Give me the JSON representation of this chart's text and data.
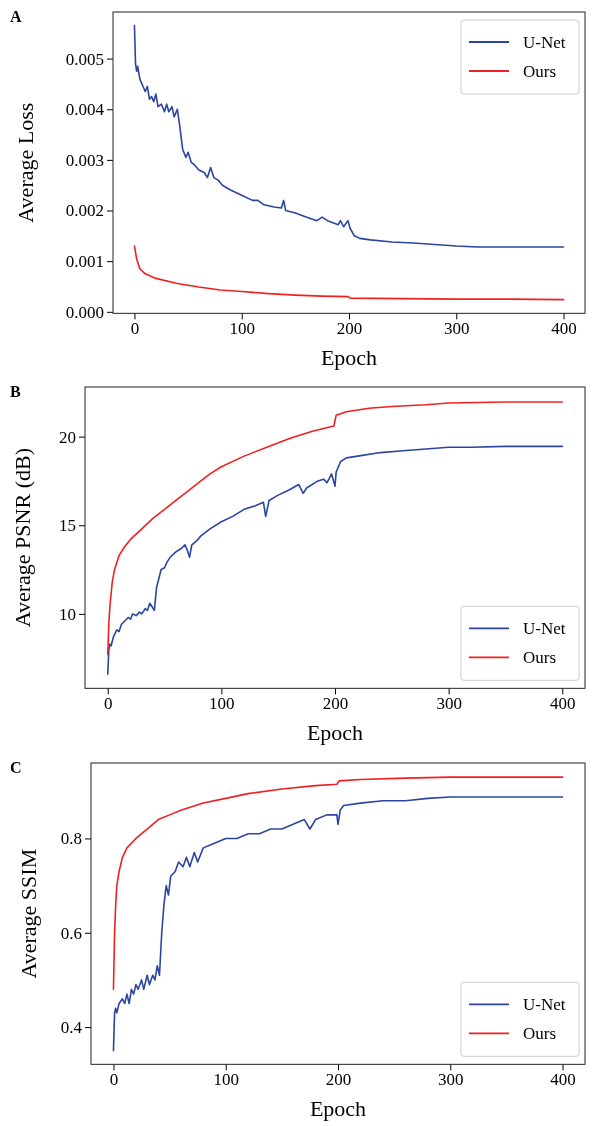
{
  "chart_data": [
    {
      "type": "line",
      "title": "A",
      "xlabel": "Epoch",
      "ylabel": "Average Loss",
      "xlim": [
        -20,
        420
      ],
      "xticks": [
        0,
        100,
        200,
        300,
        400
      ],
      "ylim": [
        -3e-05,
        0.00592
      ],
      "yticks": [
        {
          "value": 0,
          "label": "0.000"
        },
        0.001,
        0.002,
        0.003,
        0.004,
        0.005
      ],
      "legend": "top right",
      "series": [
        {
          "name": "U-Net",
          "color": "#2b45a0",
          "x": [
            0,
            1,
            2,
            3,
            5,
            8,
            10,
            12,
            14,
            16,
            18,
            20,
            22,
            25,
            28,
            30,
            32,
            35,
            37,
            40,
            42,
            45,
            48,
            50,
            53,
            56,
            60,
            65,
            68,
            71,
            74,
            78,
            82,
            90,
            100,
            110,
            115,
            120,
            130,
            137,
            139,
            141,
            150,
            160,
            170,
            175,
            180,
            190,
            192,
            195,
            199,
            201,
            205,
            210,
            220,
            240,
            260,
            280,
            300,
            320,
            350,
            380,
            400
          ],
          "values": [
            0.00565,
            0.0049,
            0.00475,
            0.00485,
            0.0046,
            0.00445,
            0.00435,
            0.00445,
            0.0042,
            0.00425,
            0.00415,
            0.0043,
            0.00405,
            0.0041,
            0.00395,
            0.0041,
            0.00395,
            0.00405,
            0.00385,
            0.004,
            0.0037,
            0.0032,
            0.00305,
            0.00315,
            0.00295,
            0.0029,
            0.0028,
            0.00275,
            0.00265,
            0.00285,
            0.00265,
            0.0026,
            0.0025,
            0.0024,
            0.0023,
            0.0022,
            0.0022,
            0.00212,
            0.00207,
            0.00205,
            0.0022,
            0.002,
            0.00195,
            0.00187,
            0.0018,
            0.00187,
            0.0018,
            0.00172,
            0.0018,
            0.00168,
            0.0018,
            0.00165,
            0.0015,
            0.00145,
            0.00142,
            0.00138,
            0.00136,
            0.00133,
            0.0013,
            0.00128,
            0.00128,
            0.00128,
            0.00128
          ]
        },
        {
          "name": "Ours",
          "color": "#f02020",
          "x": [
            0,
            2,
            5,
            10,
            20,
            40,
            60,
            80,
            100,
            125,
            150,
            175,
            199,
            201,
            250,
            300,
            350,
            400
          ],
          "values": [
            0.0013,
            0.00105,
            0.00085,
            0.00075,
            0.00066,
            0.00056,
            0.00049,
            0.00043,
            0.0004,
            0.00036,
            0.00033,
            0.00031,
            0.0003,
            0.00027,
            0.00026,
            0.00025,
            0.00025,
            0.00024
          ]
        }
      ]
    },
    {
      "type": "line",
      "title": "B",
      "xlabel": "Epoch",
      "ylabel": "Average PSNR (dB)",
      "xlim": [
        -20,
        420
      ],
      "xticks": [
        0,
        100,
        200,
        300,
        400
      ],
      "ylim": [
        5.8,
        22.8
      ],
      "yticks": [
        10,
        15,
        20
      ],
      "legend": "bottom right",
      "series": [
        {
          "name": "U-Net",
          "color": "#2b45a0",
          "x": [
            0,
            1,
            2,
            3,
            5,
            8,
            10,
            12,
            15,
            18,
            20,
            22,
            25,
            28,
            30,
            33,
            35,
            37,
            39,
            41,
            43,
            45,
            47,
            50,
            52,
            55,
            60,
            65,
            68,
            70,
            72,
            74,
            78,
            82,
            90,
            100,
            110,
            120,
            130,
            137,
            139,
            142,
            150,
            160,
            168,
            172,
            175,
            185,
            190,
            193,
            197,
            200,
            201,
            205,
            210,
            220,
            240,
            260,
            280,
            300,
            320,
            350,
            380,
            400
          ],
          "values": [
            6.6,
            8.0,
            8.3,
            8.2,
            8.7,
            9.1,
            9.0,
            9.4,
            9.6,
            9.8,
            9.7,
            10.0,
            9.9,
            10.1,
            10.0,
            10.3,
            10.2,
            10.6,
            10.4,
            10.2,
            11.5,
            12.0,
            12.5,
            12.6,
            12.9,
            13.2,
            13.5,
            13.7,
            13.9,
            13.6,
            13.2,
            13.9,
            14.1,
            14.4,
            14.8,
            15.2,
            15.5,
            15.9,
            16.1,
            16.3,
            15.5,
            16.4,
            16.7,
            17.0,
            17.3,
            16.8,
            17.1,
            17.5,
            17.6,
            17.4,
            17.9,
            17.2,
            18.0,
            18.6,
            18.8,
            18.9,
            19.1,
            19.2,
            19.3,
            19.4,
            19.4,
            19.45,
            19.45,
            19.45
          ]
        },
        {
          "name": "Ours",
          "color": "#f02020",
          "x": [
            0,
            1,
            2,
            4,
            6,
            10,
            15,
            20,
            30,
            40,
            50,
            60,
            70,
            80,
            90,
            100,
            120,
            140,
            160,
            180,
            199,
            201,
            210,
            230,
            250,
            280,
            300,
            350,
            400
          ],
          "values": [
            7.7,
            9.5,
            10.5,
            11.8,
            12.5,
            13.3,
            13.8,
            14.2,
            14.8,
            15.4,
            15.9,
            16.4,
            16.9,
            17.4,
            17.9,
            18.3,
            18.9,
            19.4,
            19.9,
            20.3,
            20.6,
            21.2,
            21.4,
            21.6,
            21.7,
            21.8,
            21.9,
            21.95,
            21.95
          ]
        }
      ]
    },
    {
      "type": "line",
      "title": "C",
      "xlabel": "Epoch",
      "ylabel": "Average SSIM",
      "xlim": [
        -20,
        420
      ],
      "xticks": [
        0,
        100,
        200,
        300,
        400
      ],
      "ylim": [
        0.321,
        0.96
      ],
      "yticks": [
        0.4,
        0.6,
        0.8
      ],
      "legend": "bottom right",
      "series": [
        {
          "name": "U-Net",
          "color": "#2b45a0",
          "x": [
            0,
            1,
            2,
            3,
            5,
            8,
            10,
            12,
            14,
            16,
            18,
            20,
            22,
            25,
            27,
            30,
            32,
            35,
            37,
            39,
            41,
            43,
            45,
            47,
            49,
            51,
            55,
            58,
            62,
            65,
            68,
            72,
            75,
            80,
            90,
            100,
            110,
            120,
            130,
            140,
            150,
            160,
            170,
            175,
            180,
            190,
            199,
            200,
            202,
            205,
            220,
            240,
            260,
            280,
            300,
            350,
            400
          ],
          "values": [
            0.35,
            0.43,
            0.44,
            0.43,
            0.45,
            0.46,
            0.45,
            0.47,
            0.45,
            0.48,
            0.47,
            0.49,
            0.48,
            0.5,
            0.48,
            0.51,
            0.49,
            0.51,
            0.5,
            0.53,
            0.51,
            0.6,
            0.66,
            0.7,
            0.68,
            0.72,
            0.73,
            0.75,
            0.74,
            0.76,
            0.74,
            0.77,
            0.75,
            0.78,
            0.79,
            0.8,
            0.8,
            0.81,
            0.81,
            0.82,
            0.82,
            0.83,
            0.84,
            0.82,
            0.84,
            0.85,
            0.85,
            0.83,
            0.86,
            0.87,
            0.875,
            0.88,
            0.88,
            0.885,
            0.888,
            0.888,
            0.888
          ]
        },
        {
          "name": "Ours",
          "color": "#f02020",
          "x": [
            0,
            1,
            2,
            3,
            5,
            8,
            12,
            20,
            30,
            40,
            50,
            60,
            80,
            100,
            120,
            150,
            180,
            199,
            201,
            220,
            260,
            300,
            350,
            400
          ],
          "values": [
            0.48,
            0.6,
            0.66,
            0.7,
            0.73,
            0.76,
            0.78,
            0.8,
            0.82,
            0.84,
            0.85,
            0.86,
            0.875,
            0.885,
            0.895,
            0.905,
            0.912,
            0.915,
            0.922,
            0.925,
            0.928,
            0.93,
            0.93,
            0.93
          ]
        }
      ]
    }
  ]
}
